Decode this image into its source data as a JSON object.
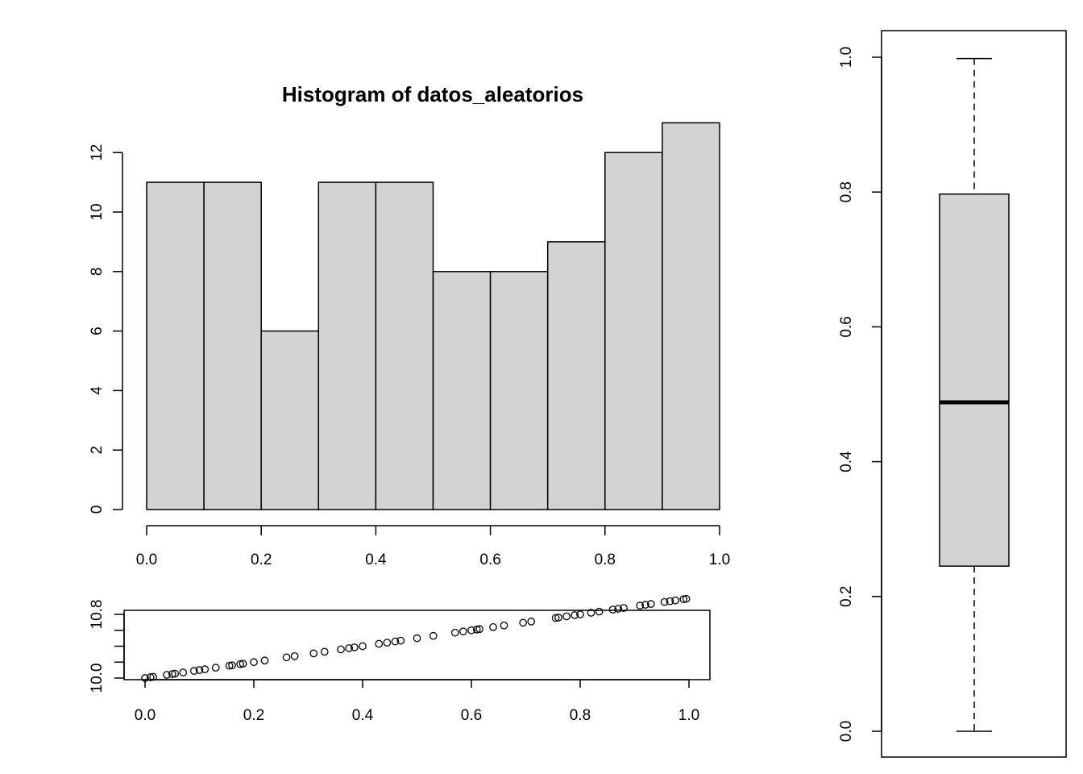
{
  "chart_data": [
    {
      "type": "bar",
      "subtype": "histogram",
      "title": "Histogram of datos_aleatorios",
      "xlabel": "",
      "ylabel": "",
      "bins": [
        {
          "x0": 0.0,
          "x1": 0.1,
          "count": 11
        },
        {
          "x0": 0.1,
          "x1": 0.2,
          "count": 11
        },
        {
          "x0": 0.2,
          "x1": 0.3,
          "count": 6
        },
        {
          "x0": 0.3,
          "x1": 0.4,
          "count": 11
        },
        {
          "x0": 0.4,
          "x1": 0.5,
          "count": 11
        },
        {
          "x0": 0.5,
          "x1": 0.6,
          "count": 8
        },
        {
          "x0": 0.6,
          "x1": 0.7,
          "count": 8
        },
        {
          "x0": 0.7,
          "x1": 0.8,
          "count": 9
        },
        {
          "x0": 0.8,
          "x1": 0.9,
          "count": 12
        },
        {
          "x0": 0.9,
          "x1": 1.0,
          "count": 13
        }
      ],
      "x_ticks": [
        "0.0",
        "0.2",
        "0.4",
        "0.6",
        "0.8",
        "1.0"
      ],
      "y_ticks": [
        "0",
        "2",
        "4",
        "6",
        "8",
        "10",
        "12"
      ],
      "xlim": [
        0,
        1
      ],
      "ylim": [
        0,
        13
      ],
      "bar_color": "#d3d3d3",
      "grid": false
    },
    {
      "type": "scatter",
      "title": "",
      "xlabel": "",
      "ylabel": "",
      "x": [
        0.0,
        0.01,
        0.015,
        0.04,
        0.05,
        0.055,
        0.07,
        0.09,
        0.1,
        0.11,
        0.13,
        0.155,
        0.16,
        0.175,
        0.18,
        0.2,
        0.22,
        0.26,
        0.275,
        0.31,
        0.33,
        0.36,
        0.375,
        0.385,
        0.4,
        0.43,
        0.445,
        0.46,
        0.47,
        0.5,
        0.53,
        0.57,
        0.585,
        0.6,
        0.61,
        0.615,
        0.64,
        0.66,
        0.695,
        0.71,
        0.755,
        0.76,
        0.775,
        0.79,
        0.8,
        0.82,
        0.835,
        0.86,
        0.87,
        0.88,
        0.91,
        0.92,
        0.93,
        0.955,
        0.965,
        0.975,
        0.99,
        0.995
      ],
      "y": [
        10.0,
        10.01,
        10.015,
        10.04,
        10.05,
        10.055,
        10.07,
        10.09,
        10.1,
        10.11,
        10.13,
        10.155,
        10.16,
        10.175,
        10.18,
        10.2,
        10.22,
        10.26,
        10.275,
        10.31,
        10.33,
        10.36,
        10.375,
        10.385,
        10.4,
        10.43,
        10.445,
        10.46,
        10.47,
        10.5,
        10.53,
        10.57,
        10.585,
        10.6,
        10.61,
        10.615,
        10.64,
        10.66,
        10.695,
        10.71,
        10.755,
        10.76,
        10.775,
        10.79,
        10.8,
        10.82,
        10.835,
        10.86,
        10.87,
        10.88,
        10.91,
        10.92,
        10.93,
        10.955,
        10.965,
        10.975,
        10.99,
        10.995
      ],
      "x_ticks": [
        "0.0",
        "0.2",
        "0.4",
        "0.6",
        "0.8",
        "1.0"
      ],
      "y_ticks": [
        "10.0",
        "10.8"
      ],
      "xlim": [
        -0.04,
        1.04
      ],
      "ylim": [
        9.96,
        11.0
      ],
      "marker": "open-circle",
      "grid": false
    },
    {
      "type": "boxplot",
      "title": "",
      "xlabel": "",
      "ylabel": "",
      "min": 0.0,
      "q1": 0.245,
      "median": 0.488,
      "q3": 0.797,
      "max": 0.998,
      "y_ticks": [
        "0.0",
        "0.2",
        "0.4",
        "0.6",
        "0.8",
        "1.0"
      ],
      "ylim": [
        -0.04,
        1.04
      ],
      "box_color": "#d3d3d3",
      "grid": false
    }
  ]
}
